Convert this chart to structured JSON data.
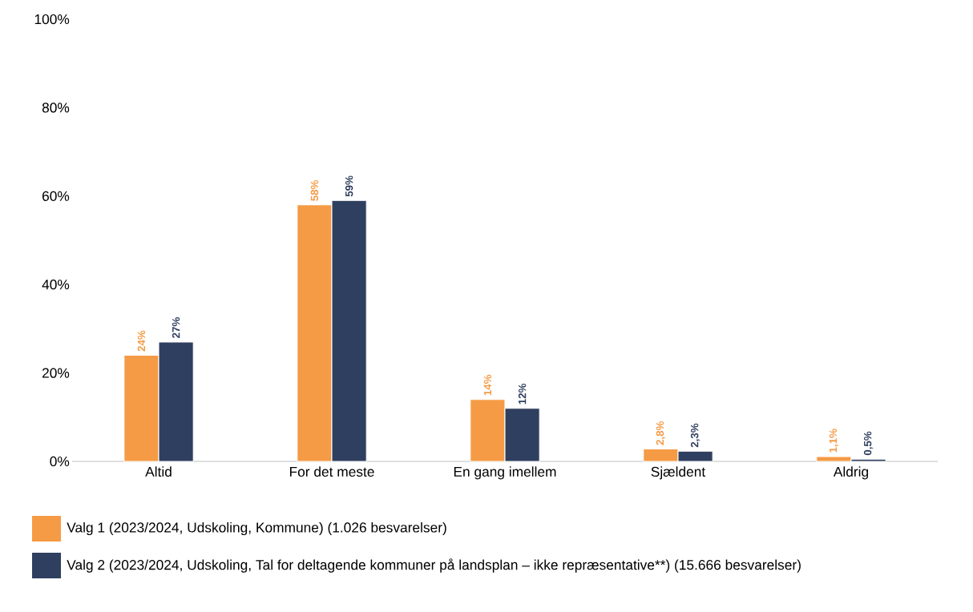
{
  "chart_data": {
    "type": "bar",
    "categories": [
      "Altid",
      "For det meste",
      "En gang imellem",
      "Sjældent",
      "Aldrig"
    ],
    "series": [
      {
        "name": "Valg 1 (2023/2024, Udskoling, Kommune) (1.026 besvarelser)",
        "color": "#f59a45",
        "values": [
          24,
          58,
          14,
          2.8,
          1.1
        ],
        "value_labels": [
          "24%",
          "58%",
          "14%",
          "2,8%",
          "1,1%"
        ]
      },
      {
        "name": "Valg 2 (2023/2024, Udskoling, Tal for deltagende kommuner på landsplan – ikke repræsentative**) (15.666 besvarelser)",
        "color": "#2f3f5f",
        "values": [
          27,
          59,
          12,
          2.3,
          0.5
        ],
        "value_labels": [
          "27%",
          "59%",
          "12%",
          "2,3%",
          "0,5%"
        ]
      }
    ],
    "ylim": [
      0,
      100
    ],
    "yticks": [
      {
        "value": 0,
        "label": "0%"
      },
      {
        "value": 20,
        "label": "20%"
      },
      {
        "value": 40,
        "label": "40%"
      },
      {
        "value": 60,
        "label": "60%"
      },
      {
        "value": 80,
        "label": "80%"
      },
      {
        "value": 100,
        "label": "100%"
      }
    ],
    "legend": "bottom"
  }
}
